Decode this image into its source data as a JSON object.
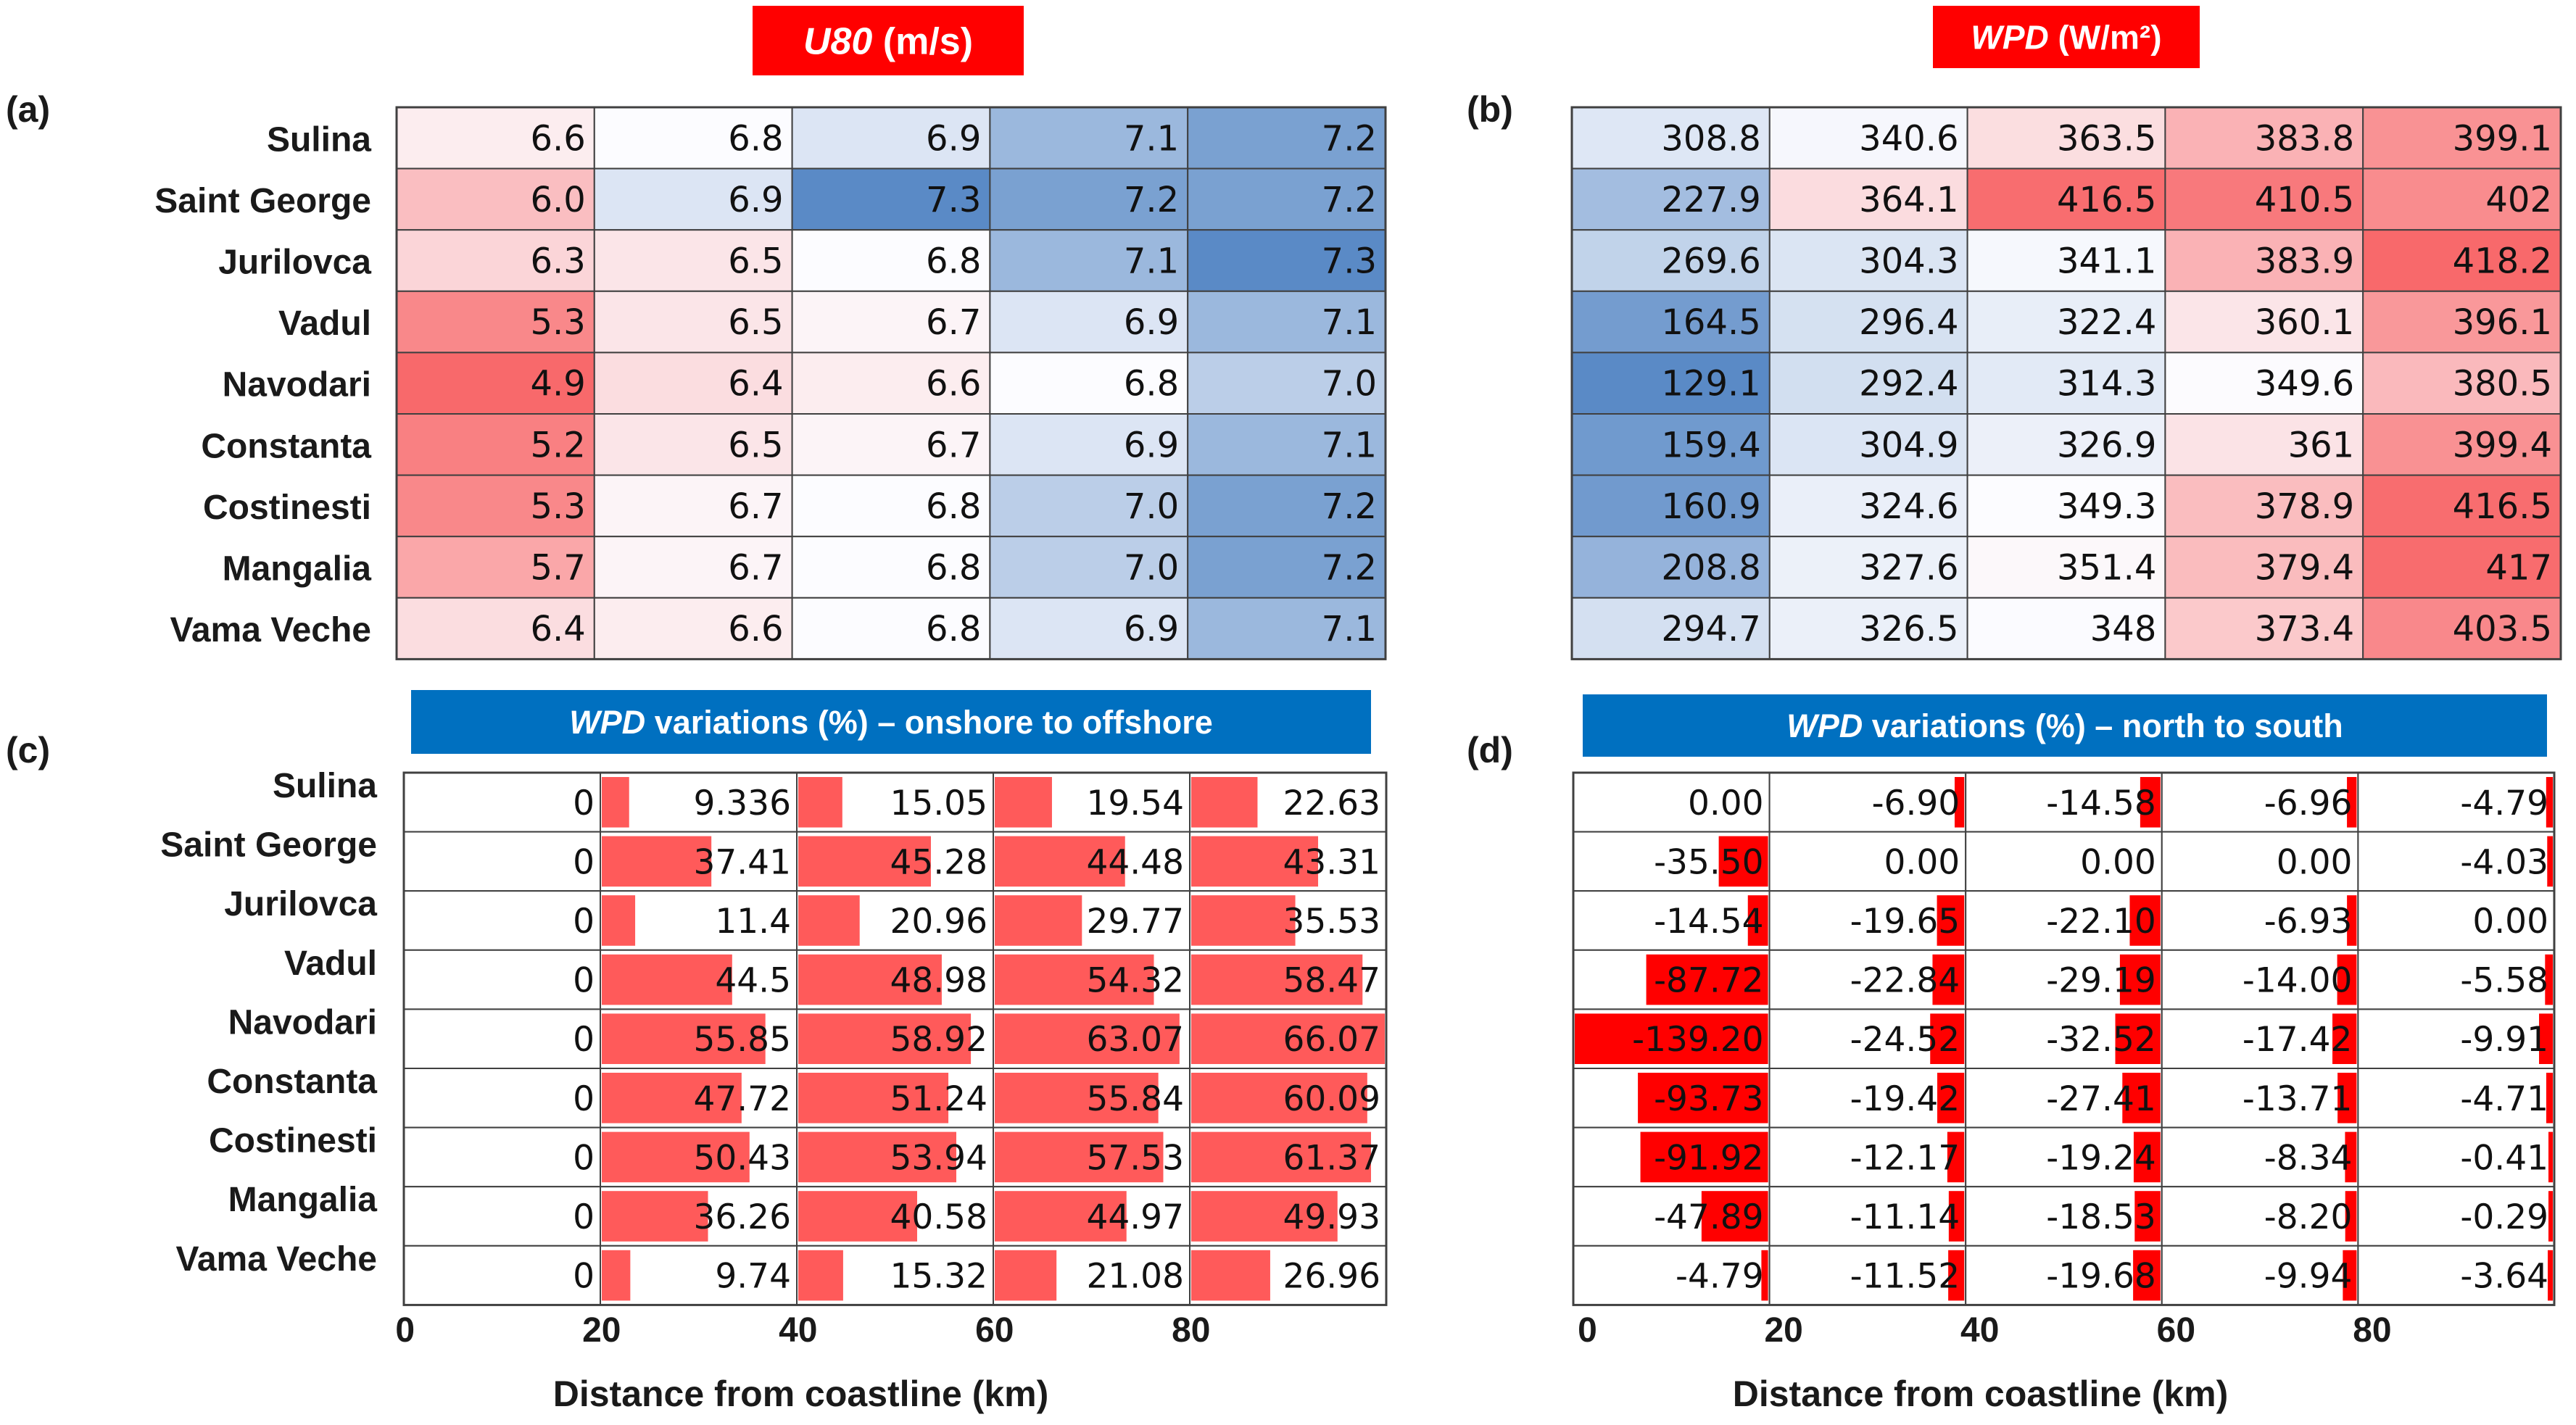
{
  "colors": {
    "red_banner": "#ff0000",
    "blue_banner": "#0070c0",
    "scale_low": "#f8696b",
    "scale_mid": "#fcfcff",
    "scale_high": "#5a8ac6",
    "bar_fill": "#ff5a5a",
    "bar_fill_negative": "#ff0000"
  },
  "rows": [
    "Sulina",
    "Saint George",
    "Jurilovca",
    "Vadul",
    "Navodari",
    "Constanta",
    "Costinesti",
    "Mangalia",
    "Vama Veche"
  ],
  "chart_data": [
    {
      "panel": "(a)",
      "type": "heatmap",
      "title_italic": "U80",
      "title_rest": " (m/s)",
      "scale": "red-white-blue",
      "rows": [
        "Sulina",
        "Saint George",
        "Jurilovca",
        "Vadul",
        "Navodari",
        "Constanta",
        "Costinesti",
        "Mangalia",
        "Vama Veche"
      ],
      "values": [
        [
          "6.6",
          "6.8",
          "6.9",
          "7.1",
          "7.2"
        ],
        [
          "6.0",
          "6.9",
          "7.3",
          "7.2",
          "7.2"
        ],
        [
          "6.3",
          "6.5",
          "6.8",
          "7.1",
          "7.3"
        ],
        [
          "5.3",
          "6.5",
          "6.7",
          "6.9",
          "7.1"
        ],
        [
          "4.9",
          "6.4",
          "6.6",
          "6.8",
          "7.0"
        ],
        [
          "5.2",
          "6.5",
          "6.7",
          "6.9",
          "7.1"
        ],
        [
          "5.3",
          "6.7",
          "6.8",
          "7.0",
          "7.2"
        ],
        [
          "5.7",
          "6.7",
          "6.8",
          "7.0",
          "7.2"
        ],
        [
          "6.4",
          "6.6",
          "6.8",
          "6.9",
          "7.1"
        ]
      ]
    },
    {
      "panel": "(b)",
      "type": "heatmap",
      "title_italic": "WPD",
      "title_rest": " (W/m²)",
      "scale": "blue-white-red",
      "rows": [
        "Sulina",
        "Saint George",
        "Jurilovca",
        "Vadul",
        "Navodari",
        "Constanta",
        "Costinesti",
        "Mangalia",
        "Vama Veche"
      ],
      "values": [
        [
          "308.8",
          "340.6",
          "363.5",
          "383.8",
          "399.1"
        ],
        [
          "227.9",
          "364.1",
          "416.5",
          "410.5",
          "402"
        ],
        [
          "269.6",
          "304.3",
          "341.1",
          "383.9",
          "418.2"
        ],
        [
          "164.5",
          "296.4",
          "322.4",
          "360.1",
          "396.1"
        ],
        [
          "129.1",
          "292.4",
          "314.3",
          "349.6",
          "380.5"
        ],
        [
          "159.4",
          "304.9",
          "326.9",
          "361",
          "399.4"
        ],
        [
          "160.9",
          "324.6",
          "349.3",
          "378.9",
          "416.5"
        ],
        [
          "208.8",
          "327.6",
          "351.4",
          "379.4",
          "417"
        ],
        [
          "294.7",
          "326.5",
          "348",
          "373.4",
          "403.5"
        ]
      ]
    },
    {
      "panel": "(c)",
      "type": "bar",
      "title_italic": "WPD",
      "title_rest": " variations (%) – onshore to offshore",
      "xlabel": "Distance from coastline (km)",
      "x_ticks": [
        "0",
        "20",
        "40",
        "60",
        "80"
      ],
      "rows": [
        "Sulina",
        "Saint George",
        "Jurilovca",
        "Vadul",
        "Navodari",
        "Constanta",
        "Costinesti",
        "Mangalia",
        "Vama Veche"
      ],
      "values": [
        [
          "0",
          "9.336",
          "15.05",
          "19.54",
          "22.63"
        ],
        [
          "0",
          "37.41",
          "45.28",
          "44.48",
          "43.31"
        ],
        [
          "0",
          "11.4",
          "20.96",
          "29.77",
          "35.53"
        ],
        [
          "0",
          "44.5",
          "48.98",
          "54.32",
          "58.47"
        ],
        [
          "0",
          "55.85",
          "58.92",
          "63.07",
          "66.07"
        ],
        [
          "0",
          "47.72",
          "51.24",
          "55.84",
          "60.09"
        ],
        [
          "0",
          "50.43",
          "53.94",
          "57.53",
          "61.37"
        ],
        [
          "0",
          "36.26",
          "40.58",
          "44.97",
          "49.93"
        ],
        [
          "0",
          "9.74",
          "15.32",
          "21.08",
          "26.96"
        ]
      ]
    },
    {
      "panel": "(d)",
      "type": "bar",
      "title_italic": "WPD",
      "title_rest": " variations (%) – north to south",
      "xlabel": "Distance from coastline (km)",
      "x_ticks": [
        "0",
        "20",
        "40",
        "60",
        "80"
      ],
      "rows": [
        "Sulina",
        "Saint George",
        "Jurilovca",
        "Vadul",
        "Navodari",
        "Constanta",
        "Costinesti",
        "Mangalia",
        "Vama Veche"
      ],
      "values": [
        [
          "0.00",
          "-6.90",
          "-14.58",
          "-6.96",
          "-4.79"
        ],
        [
          "-35.50",
          "0.00",
          "0.00",
          "0.00",
          "-4.03"
        ],
        [
          "-14.54",
          "-19.65",
          "-22.10",
          "-6.93",
          "0.00"
        ],
        [
          "-87.72",
          "-22.84",
          "-29.19",
          "-14.00",
          "-5.58"
        ],
        [
          "-139.20",
          "-24.52",
          "-32.52",
          "-17.42",
          "-9.91"
        ],
        [
          "-93.73",
          "-19.42",
          "-27.41",
          "-13.71",
          "-4.71"
        ],
        [
          "-91.92",
          "-12.17",
          "-19.24",
          "-8.34",
          "-0.41"
        ],
        [
          "-47.89",
          "-11.14",
          "-18.53",
          "-8.20",
          "-0.29"
        ],
        [
          "-4.79",
          "-11.52",
          "-19.68",
          "-9.94",
          "-3.64"
        ]
      ]
    }
  ]
}
